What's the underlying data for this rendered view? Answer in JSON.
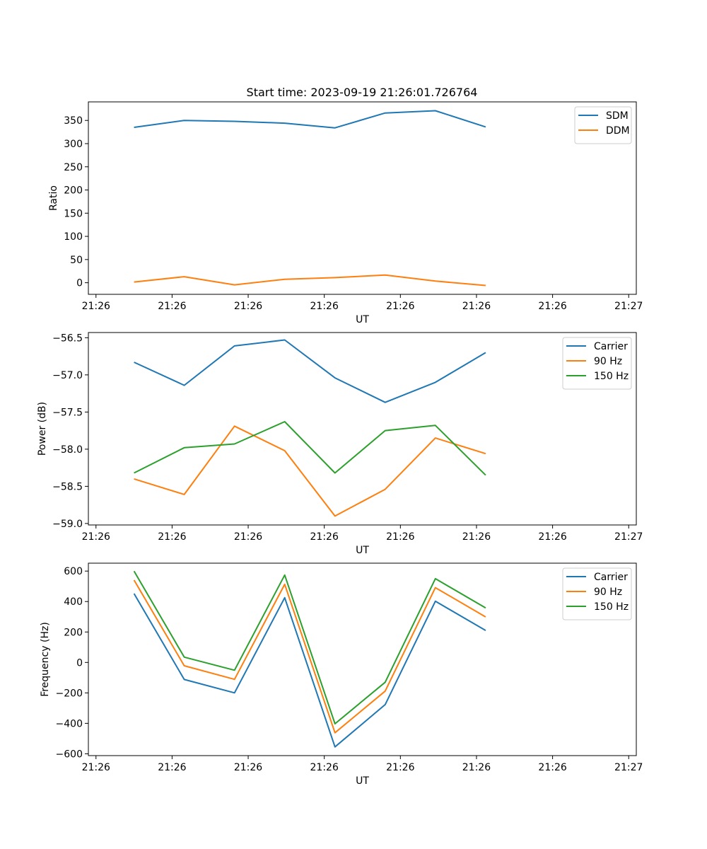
{
  "figure": {
    "title": "Start time: 2023-09-19 21:26:01.726764"
  },
  "chart_data": [
    {
      "type": "line",
      "title": "Start time: 2023-09-19 21:26:01.726764",
      "xlabel": "UT",
      "ylabel": "Ratio",
      "x_tick_labels": [
        "21:26",
        "21:26",
        "21:26",
        "21:26",
        "21:26",
        "21:26",
        "21:26"
      ],
      "x_tick_labels_extra": [
        "21:27"
      ],
      "x_ticks": [
        0,
        1,
        2,
        3,
        4,
        5,
        6,
        7
      ],
      "xlim": [
        -0.1,
        7.1
      ],
      "x": [
        0.5,
        1.16,
        1.82,
        2.48,
        3.14,
        3.8,
        4.46,
        5.12
      ],
      "ylim": [
        -25,
        390
      ],
      "y_ticks": [
        0,
        50,
        100,
        150,
        200,
        250,
        300,
        350
      ],
      "legend_position": "upper right",
      "series": [
        {
          "name": "SDM",
          "color": "#1f77b4",
          "values": [
            335,
            350,
            348,
            344,
            334,
            366,
            371,
            336
          ]
        },
        {
          "name": "DDM",
          "color": "#ff7f0e",
          "values": [
            1.5,
            13,
            -4.5,
            7.5,
            11,
            16.5,
            3.5,
            -6
          ]
        }
      ]
    },
    {
      "type": "line",
      "xlabel": "UT",
      "ylabel": "Power (dB)",
      "x_tick_labels": [
        "21:26",
        "21:26",
        "21:26",
        "21:26",
        "21:26",
        "21:26",
        "21:26",
        "21:27"
      ],
      "x_ticks": [
        0,
        1,
        2,
        3,
        4,
        5,
        6,
        7
      ],
      "xlim": [
        -0.1,
        7.1
      ],
      "x": [
        0.5,
        1.16,
        1.82,
        2.48,
        3.14,
        3.8,
        4.46,
        5.12
      ],
      "ylim": [
        -59.02,
        -56.43
      ],
      "y_ticks": [
        -59.0,
        -58.5,
        -58.0,
        -57.5,
        -57.0,
        -56.5
      ],
      "y_tick_labels": [
        "−59.0",
        "−58.5",
        "−58.0",
        "−57.5",
        "−57.0",
        "−56.5"
      ],
      "legend_position": "upper right",
      "series": [
        {
          "name": "Carrier",
          "color": "#1f77b4",
          "values": [
            -56.83,
            -57.14,
            -56.61,
            -56.53,
            -57.04,
            -57.37,
            -57.1,
            -56.7
          ]
        },
        {
          "name": "90 Hz",
          "color": "#ff7f0e",
          "values": [
            -58.4,
            -58.61,
            -57.69,
            -58.02,
            -58.9,
            -58.54,
            -57.85,
            -58.06
          ]
        },
        {
          "name": "150 Hz",
          "color": "#2ca02c",
          "values": [
            -58.32,
            -57.98,
            -57.93,
            -57.63,
            -58.32,
            -57.75,
            -57.68,
            -58.35
          ]
        }
      ]
    },
    {
      "type": "line",
      "xlabel": "UT",
      "ylabel": "Frequency (Hz)",
      "x_tick_labels": [
        "21:26",
        "21:26",
        "21:26",
        "21:26",
        "21:26",
        "21:26",
        "21:26",
        "21:27"
      ],
      "x_ticks": [
        0,
        1,
        2,
        3,
        4,
        5,
        6,
        7
      ],
      "xlim": [
        -0.1,
        7.1
      ],
      "x": [
        0.5,
        1.16,
        1.82,
        2.48,
        3.14,
        3.8,
        4.46,
        5.12
      ],
      "ylim": [
        -612,
        652
      ],
      "y_ticks": [
        -600,
        -400,
        -200,
        0,
        200,
        400,
        600
      ],
      "y_tick_labels": [
        "−600",
        "−400",
        "−200",
        "0",
        "200",
        "400",
        "600"
      ],
      "legend_position": "upper right",
      "series": [
        {
          "name": "Carrier",
          "color": "#1f77b4",
          "values": [
            452,
            -112,
            -200,
            425,
            -555,
            -277,
            402,
            210
          ]
        },
        {
          "name": "90 Hz",
          "color": "#ff7f0e",
          "values": [
            541,
            -22,
            -111,
            513,
            -462,
            -188,
            491,
            299
          ]
        },
        {
          "name": "150 Hz",
          "color": "#2ca02c",
          "values": [
            600,
            35,
            -51,
            574,
            -403,
            -130,
            550,
            358
          ]
        }
      ]
    }
  ]
}
